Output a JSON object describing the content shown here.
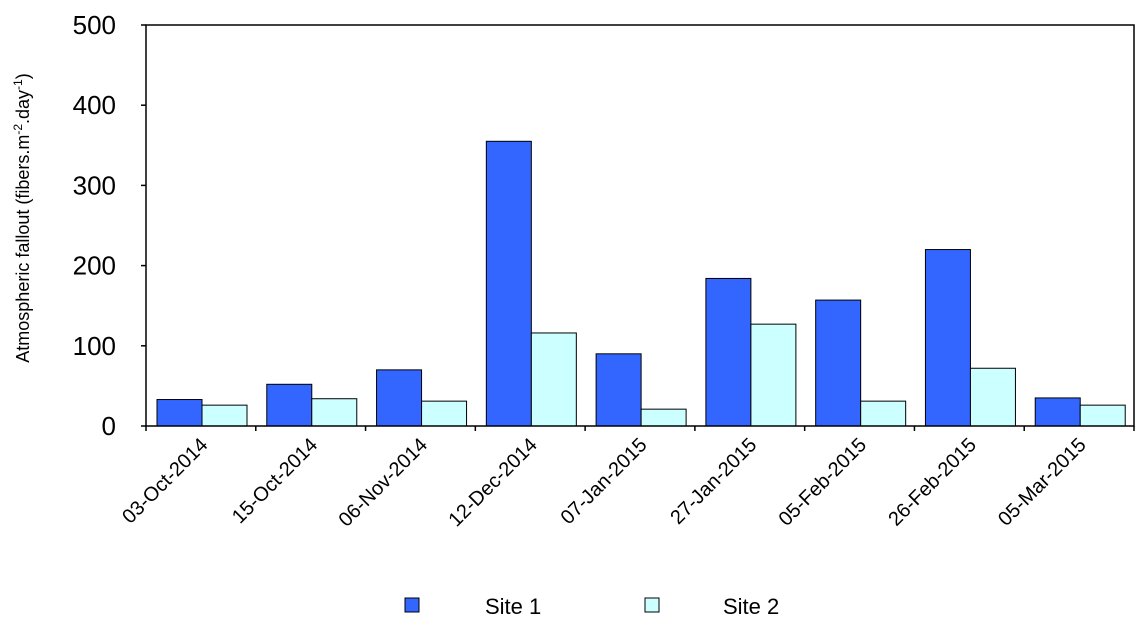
{
  "chart_data": {
    "type": "bar",
    "categories": [
      "03-Oct-2014",
      "15-Oct-2014",
      "06-Nov-2014",
      "12-Dec-2014",
      "07-Jan-2015",
      "27-Jan-2015",
      "05-Feb-2015",
      "26-Feb-2015",
      "05-Mar-2015"
    ],
    "series": [
      {
        "name": "Site 1",
        "color": "#3366ff",
        "values": [
          33,
          52,
          70,
          355,
          90,
          184,
          157,
          220,
          35
        ]
      },
      {
        "name": "Site 2",
        "color": "#ccffff",
        "values": [
          26,
          34,
          31,
          116,
          21,
          127,
          31,
          72,
          26
        ]
      }
    ],
    "ylabel": "Atmospheric fallout (fibers.m-2.day-1)",
    "ylabel_parts": {
      "main": "Atmospheric fallout (fibers.m",
      "sup1": "-2",
      "mid": ".day",
      "sup2": "-1",
      "end": ")"
    },
    "xlabel": "",
    "ylim": [
      0,
      500
    ],
    "yticks": [
      0,
      100,
      200,
      300,
      400,
      500
    ],
    "legend_position": "bottom",
    "grid": false
  }
}
